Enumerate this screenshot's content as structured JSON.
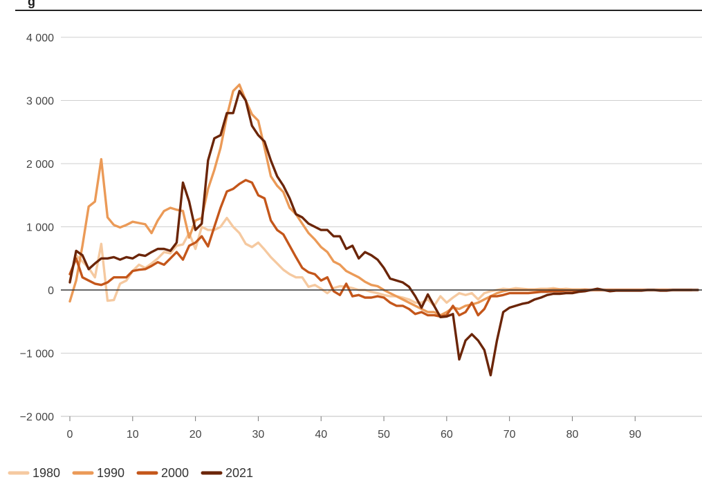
{
  "partial_title": "g",
  "chart_data": {
    "type": "line",
    "title": "",
    "xlabel": "",
    "ylabel": "",
    "xlim": [
      0,
      99
    ],
    "ylim": [
      -2000,
      4000
    ],
    "x_ticks": [
      0,
      10,
      20,
      30,
      40,
      50,
      60,
      70,
      80,
      90
    ],
    "y_ticks": [
      4000,
      3000,
      2000,
      1000,
      0,
      -1000,
      -2000
    ],
    "x_tick_labels": [
      "0",
      "10",
      "20",
      "30",
      "40",
      "50",
      "60",
      "70",
      "80",
      "90"
    ],
    "y_tick_labels": [
      "4 000",
      "3 000",
      "2 000",
      "1 000",
      "0",
      "−1 000",
      "−2 000"
    ],
    "grid": true,
    "legend_position": "bottom-left",
    "series": [
      {
        "name": "1980",
        "color": "#f5c9a0",
        "values": [
          150,
          550,
          450,
          350,
          200,
          730,
          -170,
          -160,
          100,
          150,
          300,
          400,
          350,
          420,
          500,
          600,
          580,
          700,
          720,
          900,
          650,
          1000,
          950,
          950,
          1000,
          1140,
          1000,
          900,
          730,
          680,
          750,
          640,
          520,
          420,
          320,
          250,
          200,
          200,
          50,
          80,
          20,
          -50,
          30,
          60,
          50,
          30,
          0,
          0,
          -30,
          -50,
          -80,
          -100,
          -100,
          -120,
          -150,
          -200,
          -200,
          -150,
          -250,
          -100,
          -200,
          -120,
          -50,
          -80,
          -50,
          -150,
          -50,
          -20,
          0,
          20,
          10,
          30,
          20,
          10,
          10,
          20,
          20,
          30,
          10,
          20,
          10,
          10,
          10,
          0,
          0,
          0,
          0,
          0,
          0,
          0,
          0,
          0,
          0,
          0,
          0,
          0,
          0,
          0,
          0,
          0,
          0
        ]
      },
      {
        "name": "1990",
        "color": "#eb9a57",
        "values": [
          -180,
          150,
          700,
          1320,
          1400,
          2070,
          1150,
          1030,
          990,
          1030,
          1080,
          1060,
          1040,
          900,
          1100,
          1250,
          1300,
          1270,
          1250,
          830,
          1100,
          1140,
          1600,
          1900,
          2250,
          2750,
          3150,
          3250,
          3000,
          2780,
          2680,
          2250,
          1800,
          1650,
          1550,
          1300,
          1200,
          1050,
          900,
          800,
          680,
          600,
          450,
          400,
          300,
          250,
          200,
          130,
          80,
          60,
          0,
          -50,
          -100,
          -150,
          -200,
          -250,
          -300,
          -350,
          -350,
          -400,
          -350,
          -280,
          -300,
          -250,
          -230,
          -200,
          -150,
          -100,
          -50,
          -20,
          0,
          0,
          0,
          0,
          0,
          0,
          0,
          10,
          10,
          0,
          0,
          0,
          0,
          0,
          0,
          0,
          0,
          0,
          0,
          0,
          0,
          0,
          0,
          0,
          0,
          0,
          0,
          0,
          0,
          0
        ]
      },
      {
        "name": "2000",
        "color": "#c4561a",
        "values": [
          250,
          500,
          200,
          150,
          100,
          80,
          120,
          200,
          200,
          200,
          300,
          320,
          330,
          380,
          440,
          400,
          500,
          600,
          480,
          700,
          750,
          850,
          690,
          1000,
          1300,
          1560,
          1600,
          1680,
          1740,
          1700,
          1500,
          1450,
          1100,
          950,
          880,
          700,
          520,
          350,
          280,
          250,
          150,
          200,
          -20,
          -80,
          100,
          -100,
          -80,
          -120,
          -120,
          -100,
          -120,
          -200,
          -250,
          -250,
          -300,
          -380,
          -350,
          -400,
          -400,
          -420,
          -400,
          -250,
          -400,
          -350,
          -200,
          -400,
          -300,
          -100,
          -100,
          -80,
          -50,
          -50,
          -50,
          -50,
          -40,
          -30,
          -30,
          -20,
          -20,
          -10,
          -10,
          -10,
          0,
          0,
          0,
          0,
          0,
          0,
          0,
          0,
          0,
          0,
          0,
          0,
          0,
          0,
          0,
          0,
          0,
          0
        ]
      },
      {
        "name": "2021",
        "color": "#6b2508",
        "values": [
          120,
          620,
          550,
          330,
          420,
          500,
          500,
          520,
          480,
          520,
          500,
          560,
          540,
          600,
          650,
          650,
          620,
          750,
          1700,
          1400,
          950,
          1050,
          2050,
          2400,
          2450,
          2800,
          2800,
          3150,
          3000,
          2600,
          2450,
          2350,
          2050,
          1800,
          1650,
          1450,
          1200,
          1150,
          1050,
          1000,
          950,
          950,
          850,
          850,
          650,
          700,
          500,
          600,
          550,
          480,
          350,
          180,
          150,
          120,
          50,
          -100,
          -280,
          -70,
          -250,
          -430,
          -420,
          -380,
          -1100,
          -800,
          -700,
          -800,
          -950,
          -1350,
          -800,
          -350,
          -280,
          -250,
          -220,
          -200,
          -150,
          -120,
          -80,
          -60,
          -60,
          -50,
          -50,
          -30,
          -20,
          0,
          20,
          0,
          -20,
          -10,
          -10,
          -10,
          -10,
          -10,
          0,
          0,
          -10,
          -10,
          0,
          0,
          0,
          0,
          0
        ]
      }
    ]
  }
}
